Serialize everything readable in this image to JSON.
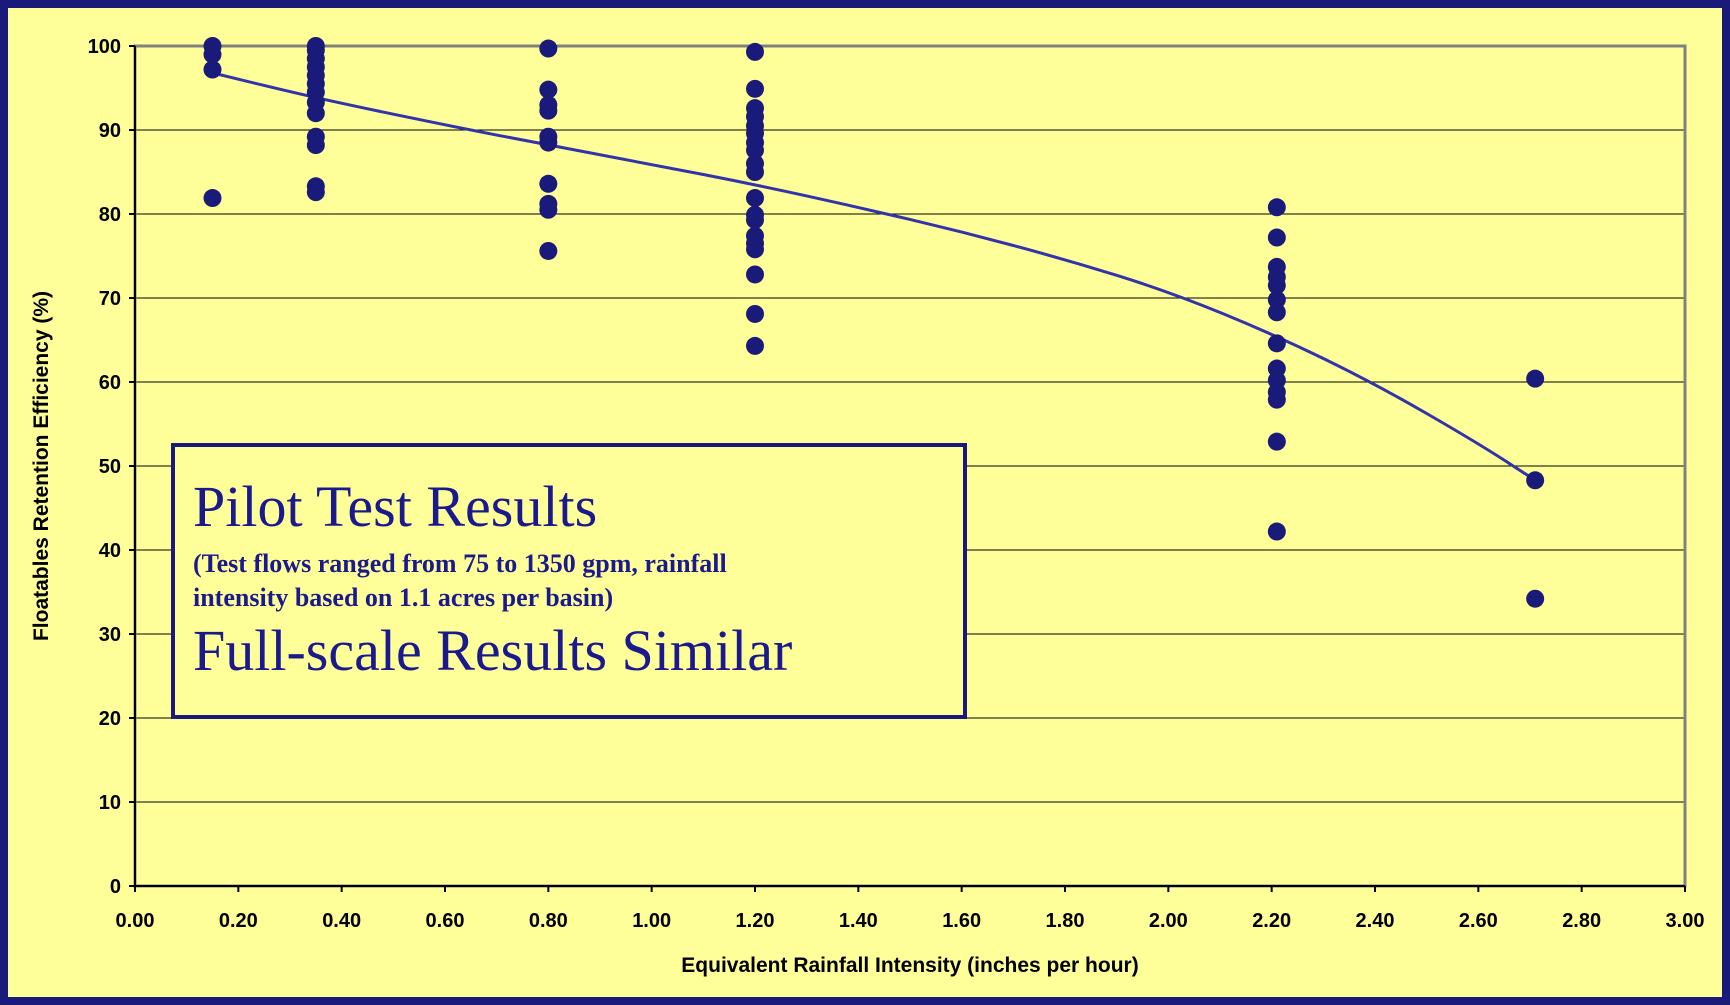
{
  "colors": {
    "background_border": "#1a1a7a",
    "plot_background": "#ffff99",
    "marker": "#1a1a7a",
    "trendline": "#3333aa",
    "annotation_text": "#1a1a8c"
  },
  "annotation": {
    "heading": "Pilot Test Results",
    "note_line1": "(Test flows ranged from 75 to 1350 gpm, rainfall",
    "note_line2": "intensity based on 1.1 acres per basin)",
    "subheading": "Full-scale Results Similar"
  },
  "chart_data": {
    "type": "scatter",
    "xlabel": "Equivalent Rainfall Intensity (inches per hour)",
    "ylabel": "Floatables Retention Efficiency (%)",
    "xlim": [
      0,
      3.0
    ],
    "ylim": [
      0,
      100
    ],
    "x_ticks": [
      "0.00",
      "0.20",
      "0.40",
      "0.60",
      "0.80",
      "1.00",
      "1.20",
      "1.40",
      "1.60",
      "1.80",
      "2.00",
      "2.20",
      "2.40",
      "2.60",
      "2.80",
      "3.00"
    ],
    "y_ticks": [
      "0",
      "10",
      "20",
      "30",
      "40",
      "50",
      "60",
      "70",
      "80",
      "90",
      "100"
    ],
    "grid": "horizontal",
    "series": [
      {
        "marker": "circle",
        "points": [
          [
            0.15,
            100
          ],
          [
            0.15,
            99
          ],
          [
            0.15,
            97.2
          ],
          [
            0.15,
            81.9
          ],
          [
            0.35,
            100
          ],
          [
            0.35,
            99.5
          ],
          [
            0.35,
            98.5
          ],
          [
            0.35,
            97.5
          ],
          [
            0.35,
            96.5
          ],
          [
            0.35,
            95.5
          ],
          [
            0.35,
            94.5
          ],
          [
            0.35,
            93.3
          ],
          [
            0.35,
            92
          ],
          [
            0.35,
            89.2
          ],
          [
            0.35,
            88.2
          ],
          [
            0.35,
            83.3
          ],
          [
            0.35,
            82.6
          ],
          [
            0.8,
            99.7
          ],
          [
            0.8,
            94.8
          ],
          [
            0.8,
            93
          ],
          [
            0.8,
            92.3
          ],
          [
            0.8,
            89.2
          ],
          [
            0.8,
            88.5
          ],
          [
            0.8,
            83.6
          ],
          [
            0.8,
            81.2
          ],
          [
            0.8,
            80.5
          ],
          [
            0.8,
            75.6
          ],
          [
            1.2,
            99.3
          ],
          [
            1.2,
            94.9
          ],
          [
            1.2,
            92.6
          ],
          [
            1.2,
            91.6
          ],
          [
            1.2,
            90.5
          ],
          [
            1.2,
            89.6
          ],
          [
            1.2,
            88.5
          ],
          [
            1.2,
            87.6
          ],
          [
            1.2,
            86
          ],
          [
            1.2,
            85
          ],
          [
            1.2,
            81.9
          ],
          [
            1.2,
            79.9
          ],
          [
            1.2,
            79.3
          ],
          [
            1.2,
            77.4
          ],
          [
            1.2,
            76.5
          ],
          [
            1.2,
            75.8
          ],
          [
            1.2,
            72.8
          ],
          [
            1.2,
            68.1
          ],
          [
            1.2,
            64.3
          ],
          [
            2.21,
            80.8
          ],
          [
            2.21,
            77.2
          ],
          [
            2.21,
            73.7
          ],
          [
            2.21,
            72.5
          ],
          [
            2.21,
            71.5
          ],
          [
            2.21,
            69.8
          ],
          [
            2.21,
            68.3
          ],
          [
            2.21,
            64.6
          ],
          [
            2.21,
            61.6
          ],
          [
            2.21,
            60.2
          ],
          [
            2.21,
            58.8
          ],
          [
            2.21,
            57.9
          ],
          [
            2.21,
            52.9
          ],
          [
            2.21,
            42.2
          ],
          [
            2.71,
            60.4
          ],
          [
            2.71,
            48.3
          ],
          [
            2.71,
            34.2
          ]
        ]
      }
    ],
    "trendline": {
      "x": [
        0.15,
        0.35,
        0.6,
        0.8,
        1.0,
        1.2,
        1.4,
        1.6,
        1.8,
        2.0,
        2.21,
        2.4,
        2.6,
        2.71
      ],
      "y": [
        96.8,
        93.8,
        90.6,
        88.2,
        85.9,
        83.5,
        80.8,
        77.9,
        74.6,
        70.8,
        65.5,
        59.8,
        52.7,
        48.3
      ]
    }
  }
}
